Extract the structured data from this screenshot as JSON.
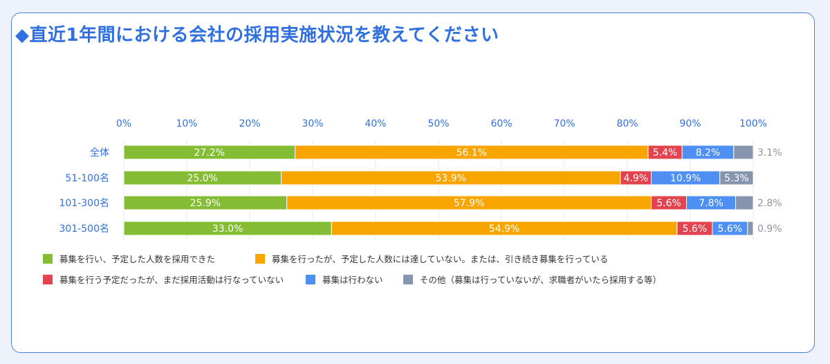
{
  "title": "◆直近1年間における会社の採用実施状況を教えてください",
  "chart_data": {
    "type": "bar",
    "orientation": "horizontal",
    "stacked": true,
    "xlim": [
      0,
      100
    ],
    "xticks": [
      "0%",
      "10%",
      "20%",
      "30%",
      "40%",
      "50%",
      "60%",
      "70%",
      "80%",
      "90%",
      "100%"
    ],
    "x_axis_position": "top",
    "grid": true,
    "legend_position": "bottom",
    "categories": [
      "全体",
      "51-100名",
      "101-300名",
      "301-500名"
    ],
    "series": [
      {
        "name": "募集を行い、予定した人数を採用できた",
        "color": "#84bd34",
        "values": [
          27.2,
          25.0,
          25.9,
          33.0
        ],
        "labels": [
          "27.2%",
          "25.0%",
          "25.9%",
          "33.0%"
        ]
      },
      {
        "name": "募集を行ったが、予定した人数には達していない。または、引き続き募集を行っている",
        "color": "#f8a500",
        "values": [
          56.1,
          53.9,
          57.9,
          54.9
        ],
        "labels": [
          "56.1%",
          "53.9%",
          "57.9%",
          "54.9%"
        ]
      },
      {
        "name": "募集を行う予定だったが、まだ採用活動は行なっていない",
        "color": "#e2434f",
        "values": [
          5.4,
          4.9,
          5.6,
          5.6
        ],
        "labels": [
          "5.4%",
          "4.9%",
          "5.6%",
          "5.6%"
        ]
      },
      {
        "name": "募集は行わない",
        "color": "#4d8ff2",
        "values": [
          8.2,
          10.9,
          7.8,
          5.6
        ],
        "labels": [
          "8.2%",
          "10.9%",
          "7.8%",
          "5.6%"
        ]
      },
      {
        "name": "その他（募集は行っていないが、求職者がいたら採用する等）",
        "color": "#8694ad",
        "values": [
          3.1,
          5.3,
          2.8,
          0.9
        ],
        "labels": [
          "3.1%",
          "5.3%",
          "2.8%",
          "0.9%"
        ]
      }
    ]
  }
}
